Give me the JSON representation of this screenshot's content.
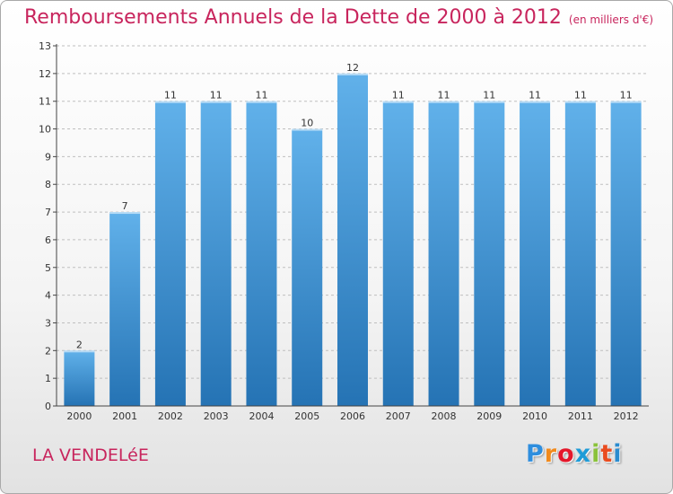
{
  "header": {
    "title": "Remboursements Annuels de la Dette de 2000 à 2012",
    "unit": "(en milliers d'€)"
  },
  "footer": {
    "commune": "LA VENDELéE",
    "logo": [
      "P",
      "r",
      "o",
      "x",
      "i",
      "t",
      "i"
    ],
    "logo_colors": [
      "#2e8ede",
      "#f18a1c",
      "#e4172a",
      "#1e9bd7",
      "#8ac23b",
      "#e94b1f",
      "#2b8ccf"
    ]
  },
  "colors": {
    "bar_light": "#61b1ea",
    "bar_dark": "#2573b4",
    "accent": "#c8255d"
  },
  "chart_data": {
    "type": "bar",
    "title": "Remboursements Annuels de la Dette de 2000 à 2012",
    "xlabel": "",
    "ylabel": "",
    "categories": [
      "2000",
      "2001",
      "2002",
      "2003",
      "2004",
      "2005",
      "2006",
      "2007",
      "2008",
      "2009",
      "2010",
      "2011",
      "2012"
    ],
    "values": [
      2,
      7,
      11,
      11,
      11,
      10,
      12,
      11,
      11,
      11,
      11,
      11,
      11
    ],
    "data_labels": [
      "2",
      "7",
      "11",
      "11",
      "11",
      "10",
      "12",
      "11",
      "11",
      "11",
      "11",
      "11",
      "11"
    ],
    "ylim": [
      0,
      13
    ],
    "yticks": [
      "0",
      "1",
      "2",
      "3",
      "4",
      "5",
      "6",
      "7",
      "8",
      "9",
      "10",
      "11",
      "12",
      "13"
    ],
    "grid": true
  }
}
